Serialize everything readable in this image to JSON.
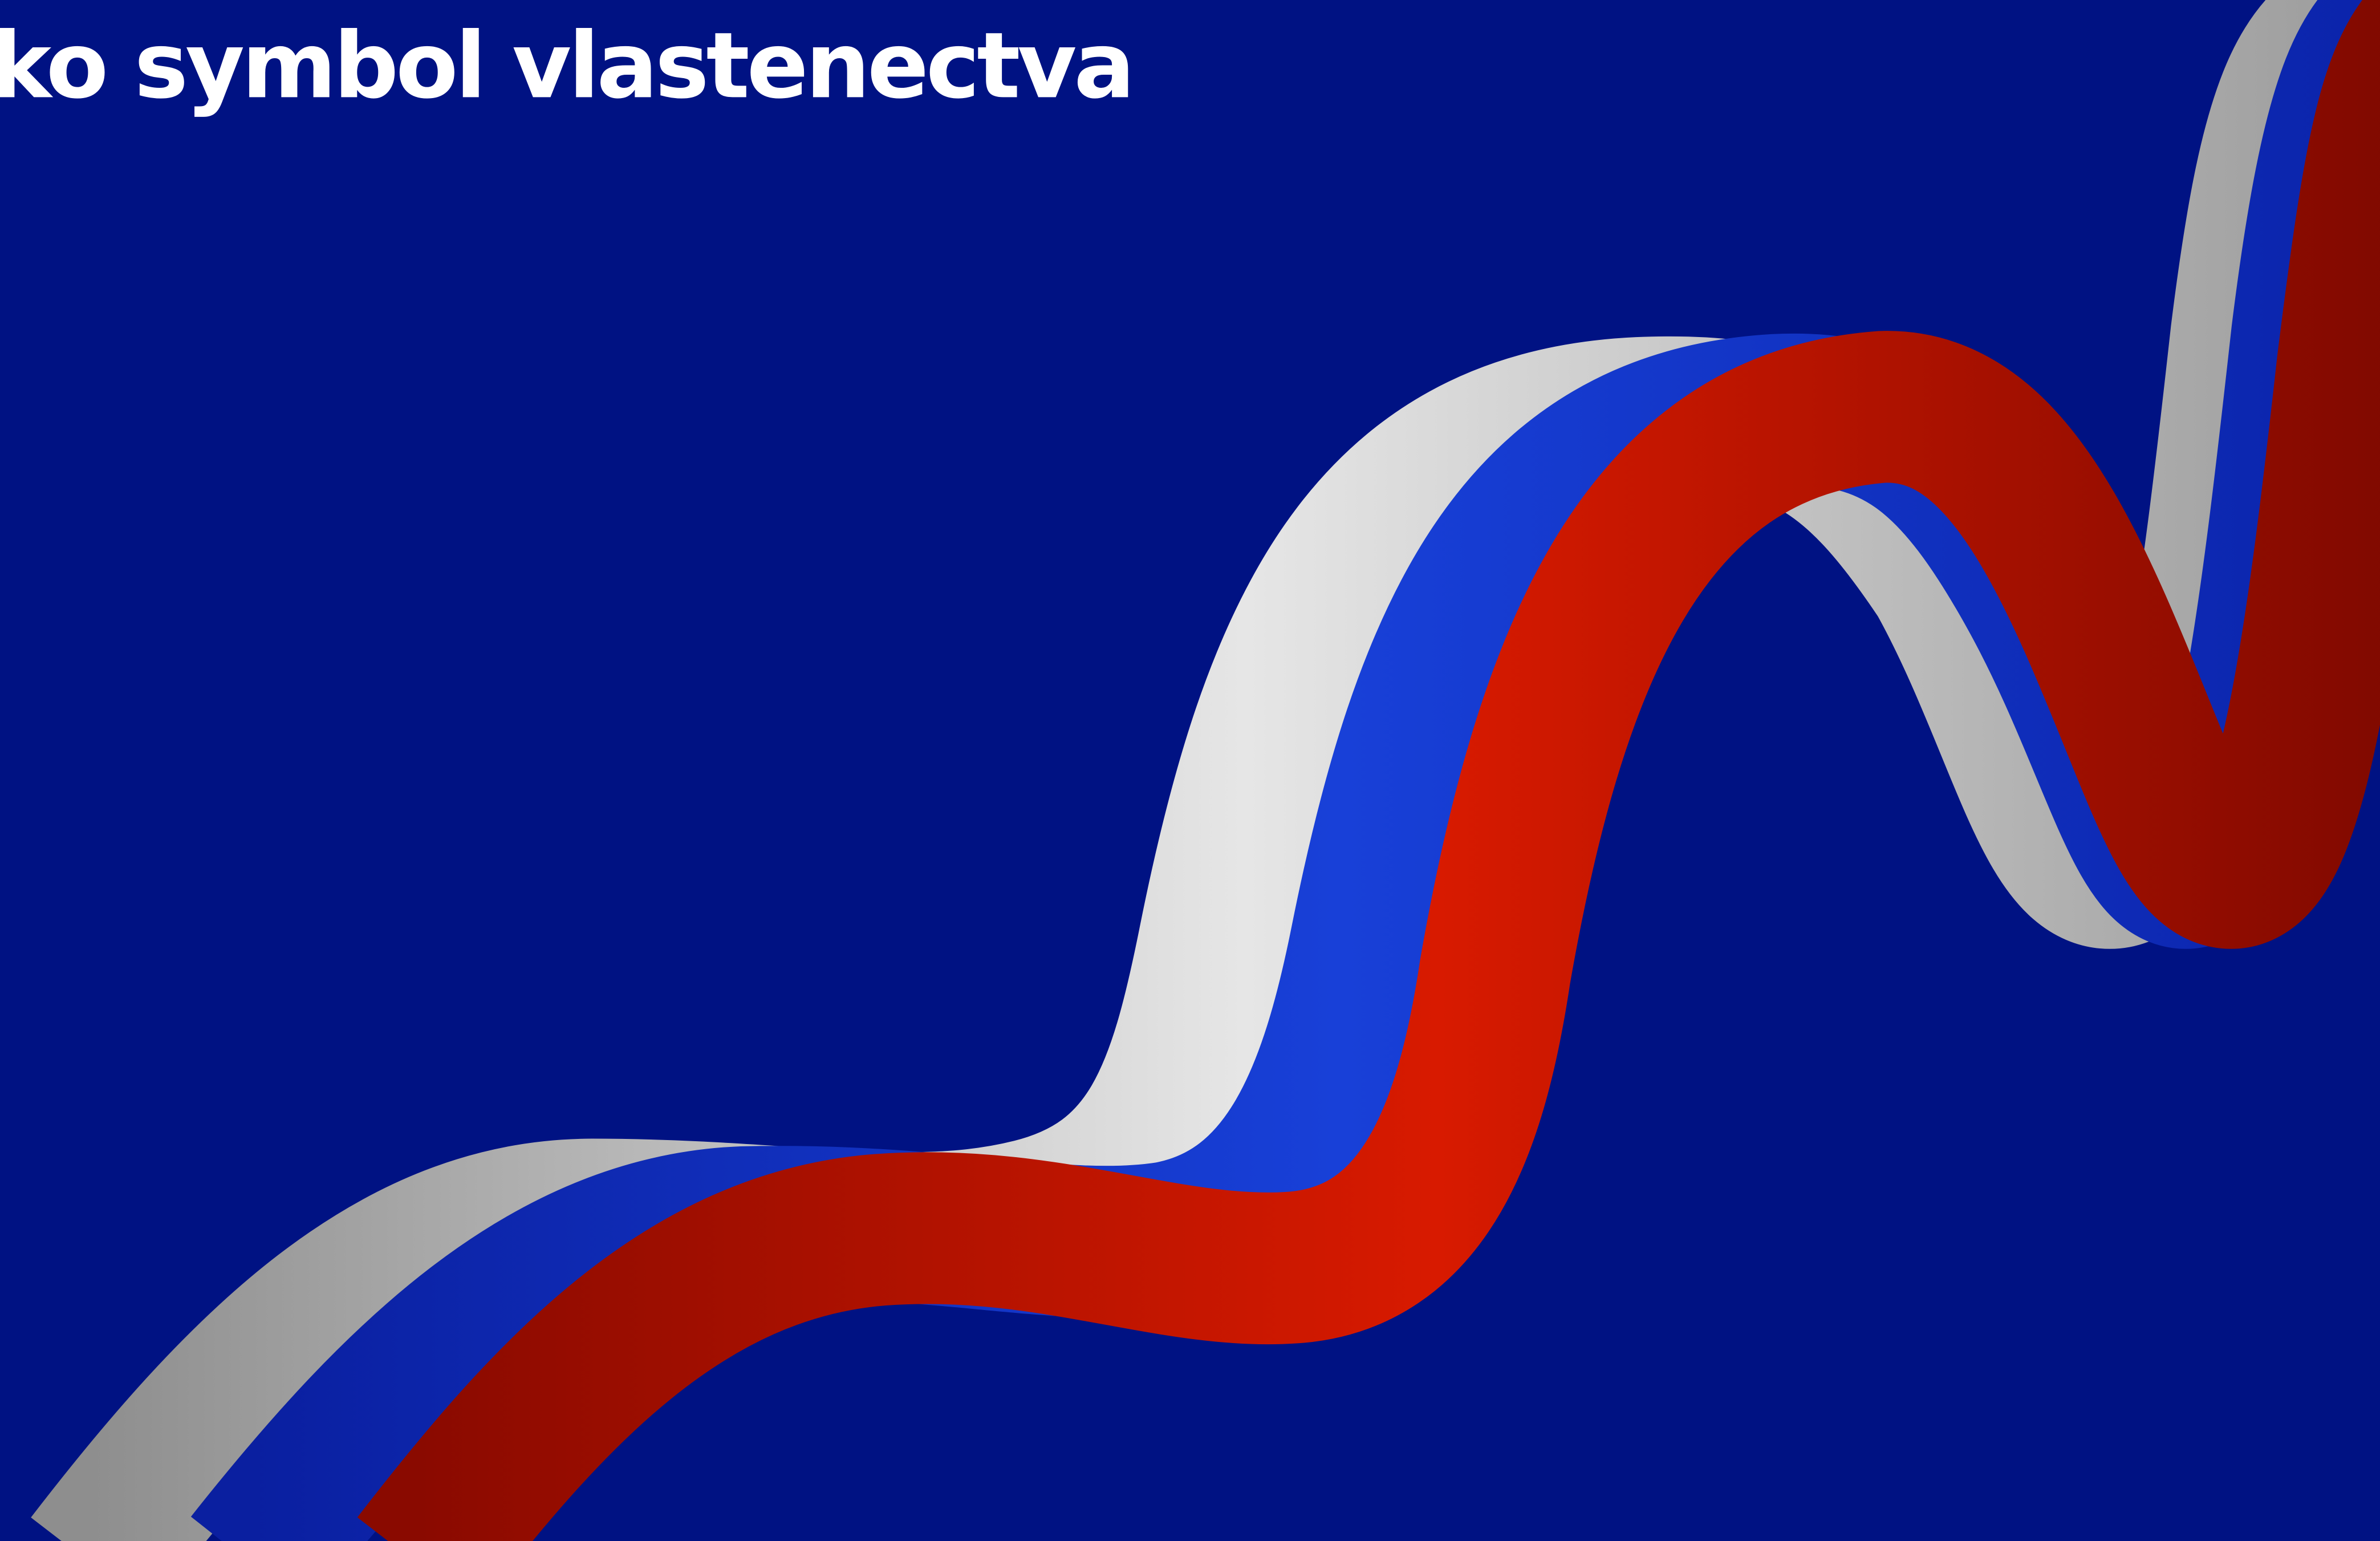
{
  "title": "ko symbol vlastenectva"
}
